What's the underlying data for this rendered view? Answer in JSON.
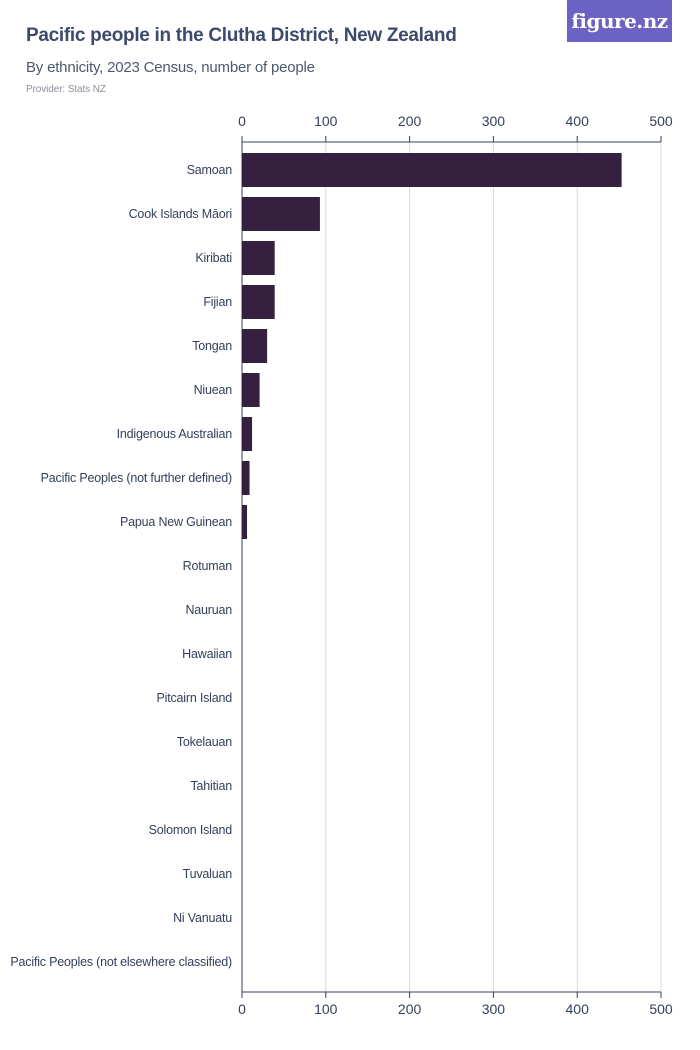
{
  "header": {
    "title": "Pacific people in the Clutha District, New Zealand",
    "subtitle": "By ethnicity, 2023 Census, number of people",
    "provider": "Provider: Stats NZ"
  },
  "logo": {
    "text": "figure.nz"
  },
  "colors": {
    "bar": "#35203f",
    "grid": "#d9d9d9",
    "axis": "#34405a",
    "logo_bg": "#6b62c4"
  },
  "chart_data": {
    "type": "bar",
    "orientation": "horizontal",
    "title": "Pacific people in the Clutha District, New Zealand",
    "subtitle": "By ethnicity, 2023 Census, number of people",
    "xlabel": "",
    "ylabel": "",
    "xlim": [
      0,
      500
    ],
    "ticks": [
      0,
      100,
      200,
      300,
      400,
      500
    ],
    "grid": true,
    "categories": [
      "Samoan",
      "Cook Islands Māori",
      "Kiribati",
      "Fijian",
      "Tongan",
      "Niuean",
      "Indigenous Australian",
      "Pacific Peoples (not further defined)",
      "Papua New Guinean",
      "Rotuman",
      "Nauruan",
      "Hawaiian",
      "Pitcairn Island",
      "Tokelauan",
      "Tahitian",
      "Solomon Island",
      "Tuvaluan",
      "Ni Vanuatu",
      "Pacific Peoples (not elsewhere classified)"
    ],
    "values": [
      453,
      93,
      39,
      39,
      30,
      21,
      12,
      9,
      6,
      0,
      0,
      0,
      0,
      0,
      0,
      0,
      0,
      0,
      0
    ]
  }
}
